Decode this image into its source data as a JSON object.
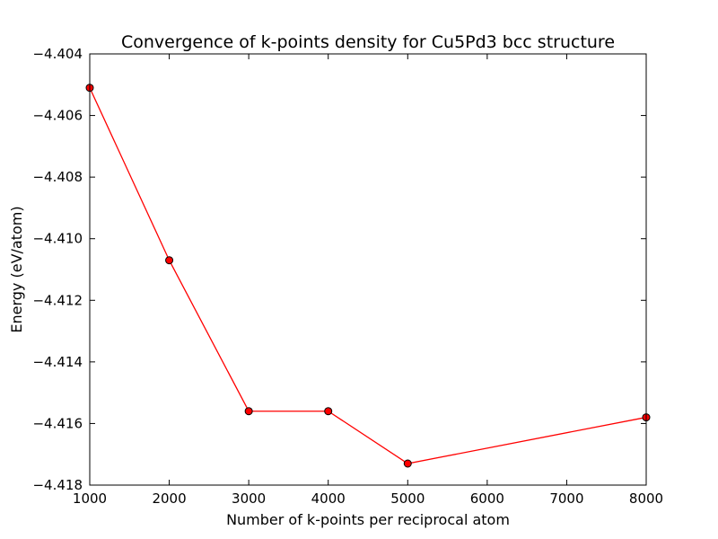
{
  "chart_data": {
    "type": "line",
    "title": "Convergence of k-points density for Cu5Pd3 bcc structure",
    "xlabel": "Number of k-points per reciprocal atom",
    "ylabel": "Energy (eV/atom)",
    "xlim": [
      1000,
      8000
    ],
    "ylim": [
      -4.418,
      -4.404
    ],
    "xticks": [
      1000,
      2000,
      3000,
      4000,
      5000,
      6000,
      7000,
      8000
    ],
    "xtick_labels": [
      "1000",
      "2000",
      "3000",
      "4000",
      "5000",
      "6000",
      "7000",
      "8000"
    ],
    "yticks": [
      -4.418,
      -4.416,
      -4.414,
      -4.412,
      -4.41,
      -4.408,
      -4.406,
      -4.404
    ],
    "ytick_labels": [
      "−4.418",
      "−4.416",
      "−4.414",
      "−4.412",
      "−4.410",
      "−4.408",
      "−4.406",
      "−4.404"
    ],
    "grid": false,
    "series": [
      {
        "x": [
          1000,
          2000,
          3000,
          4000,
          5000,
          8000
        ],
        "y": [
          -4.4051,
          -4.4107,
          -4.4156,
          -4.4156,
          -4.4173,
          -4.4158
        ],
        "line_color": "#ff0000",
        "marker": "circle",
        "marker_color": "#ff0000"
      }
    ]
  }
}
